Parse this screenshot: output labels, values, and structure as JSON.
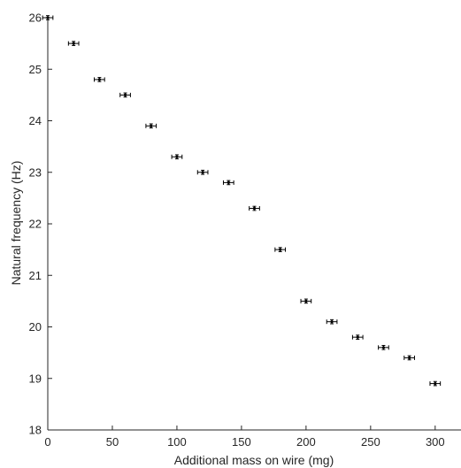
{
  "chart_data": {
    "type": "scatter",
    "title": "",
    "xlabel": "Additional mass on wire (mg)",
    "ylabel": "Natural frequency (Hz)",
    "xlim": [
      0,
      320
    ],
    "ylim": [
      18,
      26
    ],
    "x_ticks": [
      "0",
      "50",
      "100",
      "150",
      "200",
      "250",
      "300"
    ],
    "y_ticks": [
      "18",
      "19",
      "20",
      "21",
      "22",
      "23",
      "24",
      "25",
      "26"
    ],
    "grid": false,
    "points": [
      {
        "x": 0,
        "y": 26.0
      },
      {
        "x": 20,
        "y": 25.5
      },
      {
        "x": 40,
        "y": 24.8
      },
      {
        "x": 60,
        "y": 24.5
      },
      {
        "x": 80,
        "y": 23.9
      },
      {
        "x": 100,
        "y": 23.3
      },
      {
        "x": 120,
        "y": 23.0
      },
      {
        "x": 140,
        "y": 22.8
      },
      {
        "x": 160,
        "y": 22.3
      },
      {
        "x": 180,
        "y": 21.5
      },
      {
        "x": 200,
        "y": 20.5
      },
      {
        "x": 220,
        "y": 20.1
      },
      {
        "x": 240,
        "y": 19.8
      },
      {
        "x": 260,
        "y": 19.6
      },
      {
        "x": 280,
        "y": 19.4
      },
      {
        "x": 300,
        "y": 18.9
      }
    ],
    "x_error": 4,
    "y_error": 0.04,
    "colors": {
      "marker": "#000000",
      "axis": "#262626"
    }
  }
}
